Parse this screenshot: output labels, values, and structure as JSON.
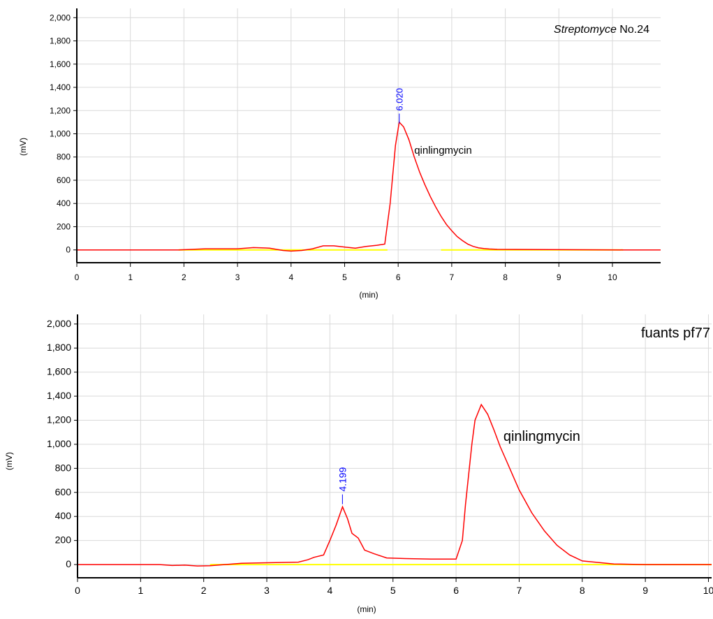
{
  "chart_data": [
    {
      "type": "line",
      "title": "",
      "annotation": {
        "species": "Streptomyce",
        "strain": "No.24"
      },
      "xlabel": "(min)",
      "ylabel": "(mV)",
      "xlim": [
        0,
        10.9
      ],
      "ylim": [
        -110,
        2080
      ],
      "xticks": [
        0,
        1,
        2,
        3,
        4,
        5,
        6,
        7,
        8,
        9,
        10
      ],
      "yticks": [
        0,
        200,
        400,
        600,
        800,
        1000,
        1200,
        1400,
        1600,
        1800,
        2000
      ],
      "ytick_labels": [
        "0",
        "200",
        "400",
        "600",
        "800",
        "1,000",
        "1,200",
        "1,400",
        "1,600",
        "1,800",
        "2,000"
      ],
      "grid": true,
      "peak_label": {
        "x": 6.02,
        "y": 1150,
        "text": "6.020"
      },
      "compound_label": {
        "x": 6.3,
        "y": 830,
        "text": "qinlingmycin"
      },
      "baseline": {
        "segments": [
          [
            1.9,
            5.8
          ],
          [
            6.8,
            10.2
          ]
        ]
      },
      "series": [
        {
          "color": "#ff0000",
          "x": [
            0,
            1.9,
            2.4,
            3.0,
            3.3,
            3.6,
            3.85,
            4.0,
            4.2,
            4.4,
            4.6,
            4.8,
            5.0,
            5.2,
            5.4,
            5.6,
            5.75,
            5.85,
            5.95,
            6.02,
            6.1,
            6.2,
            6.3,
            6.4,
            6.5,
            6.6,
            6.7,
            6.8,
            6.9,
            7.0,
            7.1,
            7.2,
            7.3,
            7.4,
            7.5,
            7.6,
            7.7,
            7.85,
            10.2,
            10.9
          ],
          "y": [
            0,
            0,
            10,
            10,
            20,
            15,
            -5,
            -10,
            -5,
            10,
            35,
            35,
            25,
            15,
            30,
            40,
            50,
            400,
            900,
            1100,
            1060,
            950,
            800,
            670,
            560,
            460,
            370,
            290,
            220,
            165,
            115,
            80,
            50,
            30,
            18,
            12,
            8,
            5,
            0,
            0
          ]
        }
      ]
    },
    {
      "type": "line",
      "title": "",
      "annotation": {
        "text": "fuants pf77"
      },
      "xlabel": "(min)",
      "ylabel": "(mV)",
      "xlim": [
        0,
        10.05
      ],
      "ylim": [
        -110,
        2080
      ],
      "xticks": [
        0,
        1,
        2,
        3,
        4,
        5,
        6,
        7,
        8,
        9,
        10
      ],
      "xtick_labels": [
        "0",
        "1",
        "2",
        "3",
        "4",
        "5",
        "6",
        "7",
        "8",
        "9",
        "10"
      ],
      "yticks": [
        0,
        200,
        400,
        600,
        800,
        1000,
        1200,
        1400,
        1600,
        1800,
        2000
      ],
      "ytick_labels": [
        "0",
        "200",
        "400",
        "600",
        "800",
        "1,000",
        "1,200",
        "1,400",
        "1,600",
        "1,800",
        "2,000"
      ],
      "grid": true,
      "peak_label": {
        "x": 4.199,
        "y": 560,
        "text": "4.199"
      },
      "compound_label": {
        "x": 6.75,
        "y": 1030,
        "text": "qinlingmycin"
      },
      "baseline": {
        "segments": [
          [
            2.1,
            10.05
          ]
        ]
      },
      "series": [
        {
          "color": "#ff0000",
          "x": [
            0,
            1.3,
            1.5,
            1.7,
            1.9,
            2.1,
            2.6,
            3.0,
            3.5,
            3.65,
            3.75,
            3.9,
            4.0,
            4.1,
            4.2,
            4.28,
            4.35,
            4.45,
            4.55,
            4.7,
            4.9,
            5.2,
            5.6,
            6.0,
            6.1,
            6.15,
            6.25,
            6.3,
            6.4,
            6.5,
            6.6,
            6.7,
            6.8,
            6.9,
            7.0,
            7.2,
            7.4,
            7.6,
            7.8,
            8.0,
            8.5,
            9.0,
            10.05
          ],
          "y": [
            0,
            0,
            -8,
            -5,
            -12,
            -10,
            10,
            15,
            20,
            40,
            60,
            80,
            200,
            330,
            480,
            380,
            260,
            220,
            120,
            90,
            55,
            50,
            45,
            45,
            200,
            500,
            1000,
            1200,
            1330,
            1250,
            1120,
            980,
            860,
            740,
            620,
            430,
            280,
            160,
            80,
            30,
            5,
            0,
            0
          ]
        }
      ]
    }
  ]
}
